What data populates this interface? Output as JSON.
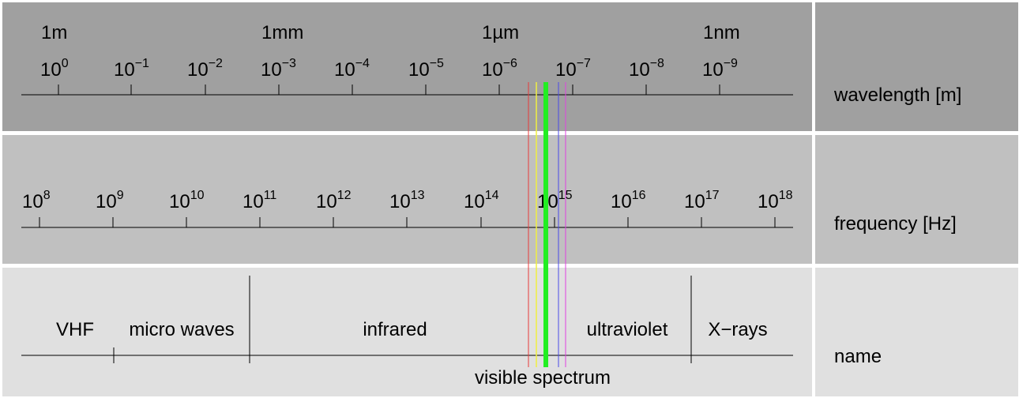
{
  "wavelength": {
    "row_label": "wavelength [m]",
    "unit_labels": [
      {
        "text": "1m",
        "exp": 0
      },
      {
        "text": "1mm",
        "exp": -3
      },
      {
        "text": "1µm",
        "exp": -6
      },
      {
        "text": "1nm",
        "exp": -9
      }
    ],
    "ticks": [
      {
        "base": "10",
        "exp": "0"
      },
      {
        "base": "10",
        "exp": "−1"
      },
      {
        "base": "10",
        "exp": "−2"
      },
      {
        "base": "10",
        "exp": "−3"
      },
      {
        "base": "10",
        "exp": "−4"
      },
      {
        "base": "10",
        "exp": "−5"
      },
      {
        "base": "10",
        "exp": "−6"
      },
      {
        "base": "10",
        "exp": "−7"
      },
      {
        "base": "10",
        "exp": "−8"
      },
      {
        "base": "10",
        "exp": "−9"
      }
    ]
  },
  "frequency": {
    "row_label": "frequency [Hz]",
    "ticks": [
      {
        "base": "10",
        "exp": "8"
      },
      {
        "base": "10",
        "exp": "9"
      },
      {
        "base": "10",
        "exp": "10"
      },
      {
        "base": "10",
        "exp": "11"
      },
      {
        "base": "10",
        "exp": "12"
      },
      {
        "base": "10",
        "exp": "13"
      },
      {
        "base": "10",
        "exp": "14"
      },
      {
        "base": "10",
        "exp": "15"
      },
      {
        "base": "10",
        "exp": "16"
      },
      {
        "base": "10",
        "exp": "17"
      },
      {
        "base": "10",
        "exp": "18"
      }
    ]
  },
  "name": {
    "row_label": "name",
    "bands": [
      "VHF",
      "micro waves",
      "infrared",
      "ultraviolet",
      "X−rays"
    ],
    "visible_label": "visible spectrum"
  },
  "visible_lines": [
    {
      "color": "#e83a3a"
    },
    {
      "color": "#f0f040"
    },
    {
      "color": "#22ee22"
    },
    {
      "color": "#4a4ae8"
    },
    {
      "color": "#e040e0"
    }
  ],
  "colors": {
    "row_wavelength_bg": "#a0a0a0",
    "row_frequency_bg": "#c0c0c0",
    "row_name_bg": "#e0e0e0"
  }
}
